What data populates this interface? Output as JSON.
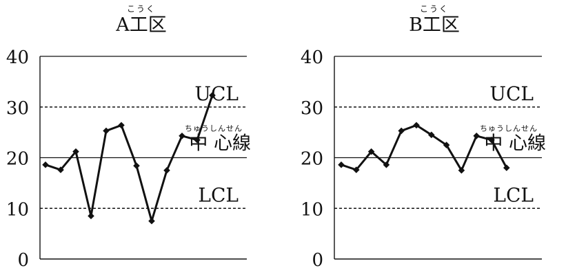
{
  "chart_data": [
    {
      "type": "line",
      "title": "A工区",
      "title_ruby": "こうく",
      "x": [
        1,
        2,
        3,
        4,
        5,
        6,
        7,
        8,
        9,
        10,
        11,
        12
      ],
      "values": [
        18.6,
        17.6,
        21.2,
        8.5,
        25.3,
        26.4,
        18.4,
        7.5,
        17.5,
        24.3,
        23.5,
        32.3
      ],
      "ylim": [
        0,
        40
      ],
      "yticks": [
        "0",
        "10",
        "20",
        "30",
        "40"
      ],
      "reference_lines": {
        "ucl": {
          "label": "UCL",
          "value": 30,
          "style": "dashed"
        },
        "center": {
          "label": "中 心線",
          "ruby": "ちゅうしんせん",
          "value": 20,
          "style": "solid"
        },
        "lcl": {
          "label": "LCL",
          "value": 10,
          "style": "dashed"
        }
      },
      "gridlines": [
        40
      ],
      "color": "#111111"
    },
    {
      "type": "line",
      "title": "B工区",
      "title_ruby": "こうく",
      "x": [
        1,
        2,
        3,
        4,
        5,
        6,
        7,
        8,
        9,
        10,
        11,
        12
      ],
      "values": [
        18.6,
        17.6,
        21.2,
        18.6,
        25.3,
        26.4,
        24.5,
        22.5,
        17.5,
        24.3,
        23.5,
        18.0
      ],
      "ylim": [
        0,
        40
      ],
      "yticks": [
        "0",
        "10",
        "20",
        "30",
        "40"
      ],
      "reference_lines": {
        "ucl": {
          "label": "UCL",
          "value": 30,
          "style": "dashed"
        },
        "center": {
          "label": "中 心線",
          "ruby": "ちゅうしんせん",
          "value": 20,
          "style": "solid"
        },
        "lcl": {
          "label": "LCL",
          "value": 10,
          "style": "dashed"
        }
      },
      "gridlines": [
        40
      ],
      "color": "#111111"
    }
  ]
}
